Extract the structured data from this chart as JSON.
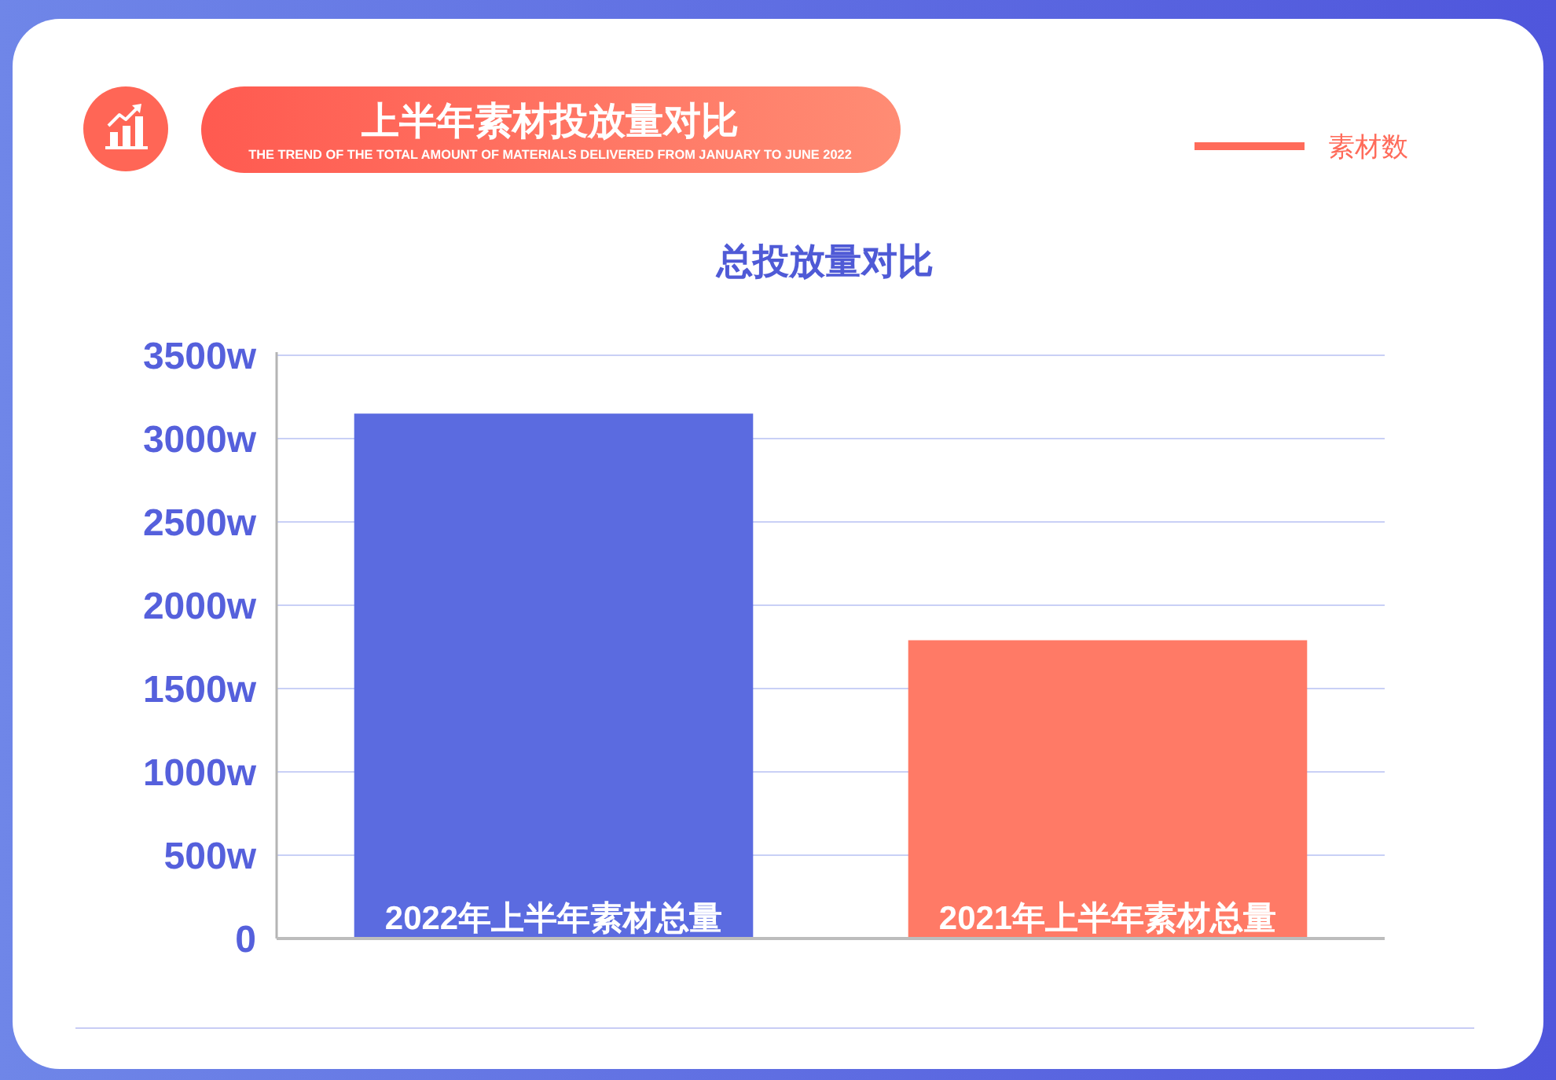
{
  "chart_data": {
    "type": "bar",
    "title": "上半年素材投放量对比",
    "subtitle": "THE TREND OF THE TOTAL AMOUNT OF MATERIALS DELIVERED FROM JANUARY TO JUNE 2022",
    "annotations": [
      "总投放量对比"
    ],
    "categories": [
      "2022年上半年素材总量",
      "2021年上半年素材总量"
    ],
    "series": [
      {
        "name": "素材数",
        "color": "#ff6b5a",
        "colors": [
          "#5b6be0",
          "#ff7a66"
        ],
        "values": [
          3150,
          1790
        ]
      }
    ],
    "ylim": [
      0,
      3500
    ],
    "yticks": [
      0,
      {
        "value": 500,
        "label": "500w"
      },
      {
        "value": 1000,
        "label": "1000w"
      },
      {
        "value": 1500,
        "label": "1500w"
      },
      {
        "value": 2000,
        "label": "2000w"
      },
      {
        "value": 2500,
        "label": "2500w"
      },
      {
        "value": 3000,
        "label": "3000w"
      },
      {
        "value": 3500,
        "label": "3500w"
      }
    ],
    "grid": "y",
    "legend": "top right"
  }
}
